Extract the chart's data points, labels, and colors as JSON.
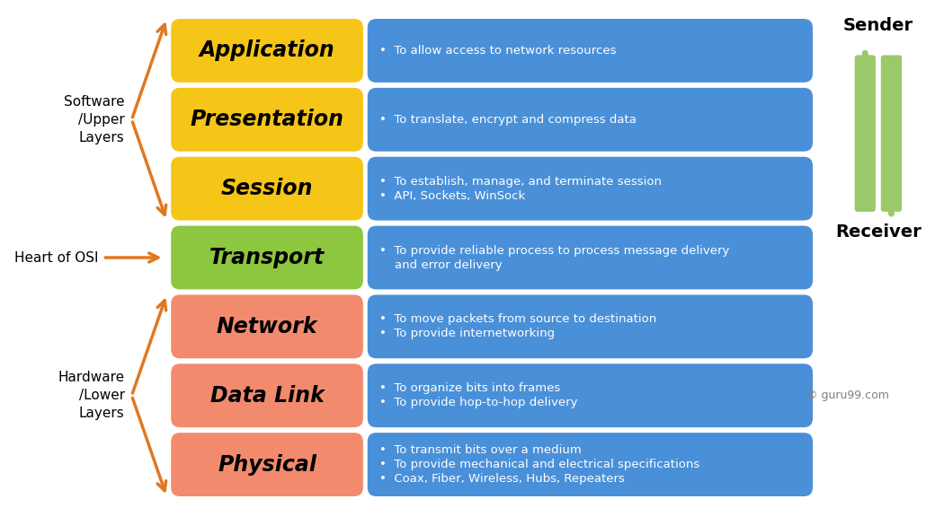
{
  "layers": [
    {
      "name": "Application",
      "description": [
        "To allow access to network resources"
      ],
      "bullet_new": [
        true
      ],
      "label_color": "#F5C518",
      "desc_color": "#4A90D9",
      "row": 6
    },
    {
      "name": "Presentation",
      "description": [
        "To translate, encrypt and compress data"
      ],
      "bullet_new": [
        true
      ],
      "label_color": "#F5C518",
      "desc_color": "#4A90D9",
      "row": 5
    },
    {
      "name": "Session",
      "description": [
        "To establish, manage, and terminate session",
        "API, Sockets, WinSock"
      ],
      "bullet_new": [
        true,
        true
      ],
      "label_color": "#F5C518",
      "desc_color": "#4A90D9",
      "row": 4
    },
    {
      "name": "Transport",
      "description": [
        "To provide reliable process to process message delivery",
        "and error delivery"
      ],
      "bullet_new": [
        true,
        false
      ],
      "label_color": "#8DC63F",
      "desc_color": "#4A90D9",
      "row": 3
    },
    {
      "name": "Network",
      "description": [
        "To move packets from source to destination",
        "To provide internetworking"
      ],
      "bullet_new": [
        true,
        true
      ],
      "label_color": "#F28B6E",
      "desc_color": "#4A90D9",
      "row": 2
    },
    {
      "name": "Data Link",
      "description": [
        "To organize bits into frames",
        "To provide hop-to-hop delivery"
      ],
      "bullet_new": [
        true,
        true
      ],
      "label_color": "#F28B6E",
      "desc_color": "#4A90D9",
      "row": 1
    },
    {
      "name": "Physical",
      "description": [
        "To transmit bits over a medium",
        "To provide mechanical and electrical specifications",
        "Coax, Fiber, Wireless, Hubs, Repeaters"
      ],
      "bullet_new": [
        true,
        true,
        true
      ],
      "label_color": "#F28B6E",
      "desc_color": "#4A90D9",
      "row": 0
    }
  ],
  "software_label": "Software\n/Upper\nLayers",
  "hardware_label": "Hardware\n/Lower\nLayers",
  "heart_label": "Heart of OSI",
  "sender_label": "Sender",
  "receiver_label": "Receiver",
  "copyright": "© guru99.com",
  "bg_color": "#FFFFFF",
  "arrow_color": "#E07820",
  "sender_arrow_color": "#9BC96A",
  "label_text_color": "#000000",
  "desc_text_color": "#FFFFFF"
}
